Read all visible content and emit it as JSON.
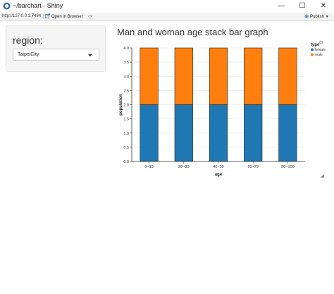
{
  "window": {
    "title": "~/barchart - Shiny",
    "controls": {
      "minimize": "—",
      "maximize": "☐",
      "close": "✕"
    }
  },
  "toolbar": {
    "url": "http://127.0.0.1:7484",
    "open_in_browser": "Open in Browser",
    "publish": "Publish"
  },
  "sidebar": {
    "label": "region:",
    "selected": "TaipeiCity"
  },
  "page": {
    "title": "Man and woman age stack bar graph"
  },
  "colors": {
    "female": "#1f77b4",
    "male": "#ff7f0e",
    "grid": "#ebebeb",
    "axis": "#333333"
  },
  "icons": {
    "app": "shiny-app-icon",
    "open_in_browser": "open-browser-icon",
    "refresh": "refresh-icon",
    "publish": "publish-icon",
    "settings": "gear-icon",
    "resize": "resize-handle-icon"
  },
  "chart_data": {
    "type": "bar",
    "stacked": true,
    "title": "",
    "xlabel": "age",
    "ylabel": "population",
    "categories": [
      "0~19",
      "20~39",
      "40~59",
      "60~79",
      "80~100"
    ],
    "series": [
      {
        "name": "female",
        "color": "#1f77b4",
        "values": [
          2.0,
          2.0,
          2.0,
          2.0,
          2.0
        ]
      },
      {
        "name": "male",
        "color": "#ff7f0e",
        "values": [
          2.0,
          2.0,
          2.0,
          2.0,
          2.0
        ]
      }
    ],
    "ylim": [
      0,
      4.0
    ],
    "yticks": [
      "0.0",
      "0.5",
      "1.0",
      "1.5",
      "2.0",
      "2.5",
      "3.0",
      "3.5",
      "4.0"
    ],
    "legend": {
      "title": "type",
      "position": "top-right"
    },
    "grid": true
  }
}
